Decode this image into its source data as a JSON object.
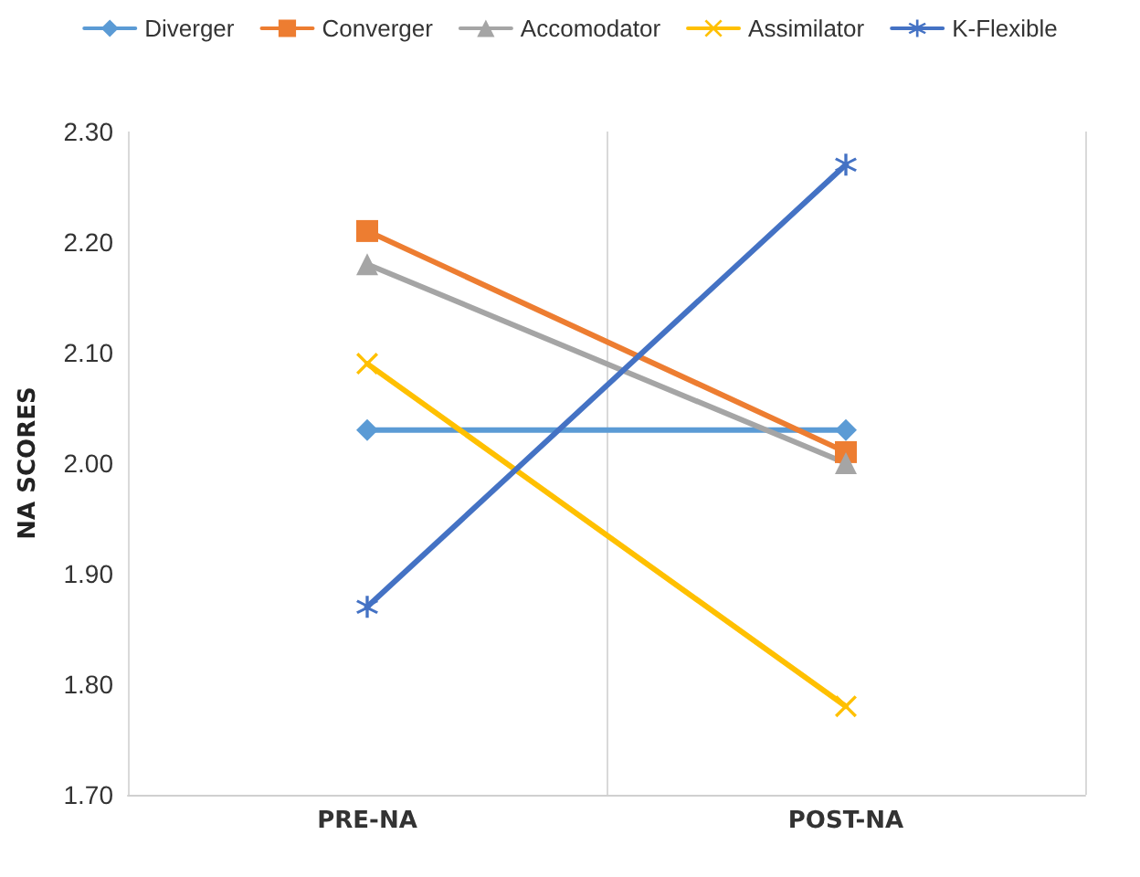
{
  "chart_data": {
    "type": "line",
    "ylabel": "NA SCORES",
    "categories": [
      "PRE-NA",
      "POST-NA"
    ],
    "series": [
      {
        "name": "Diverger",
        "color": "#5b9bd5",
        "marker": "diamond",
        "values": [
          2.03,
          2.03
        ]
      },
      {
        "name": "Converger",
        "color": "#ed7d31",
        "marker": "square",
        "values": [
          2.21,
          2.01
        ]
      },
      {
        "name": "Accomodator",
        "color": "#a5a5a5",
        "marker": "triangle",
        "values": [
          2.18,
          2.0
        ]
      },
      {
        "name": "Assimilator",
        "color": "#ffc000",
        "marker": "cross",
        "values": [
          2.09,
          1.78
        ]
      },
      {
        "name": "K-Flexible",
        "color": "#4472c4",
        "marker": "star",
        "values": [
          1.87,
          2.27
        ]
      }
    ],
    "ylim": [
      1.7,
      2.3
    ],
    "yticks": [
      {
        "value": 1.7,
        "label": "1.70"
      },
      {
        "value": 1.8,
        "label": "1.80"
      },
      {
        "value": 1.9,
        "label": "1.90"
      },
      {
        "value": 2.0,
        "label": "2.00"
      },
      {
        "value": 2.1,
        "label": "2.10"
      },
      {
        "value": 2.2,
        "label": "2.20"
      },
      {
        "value": 2.3,
        "label": "2.30"
      }
    ],
    "grid": "x",
    "legend": "top",
    "line_style": "solid"
  }
}
